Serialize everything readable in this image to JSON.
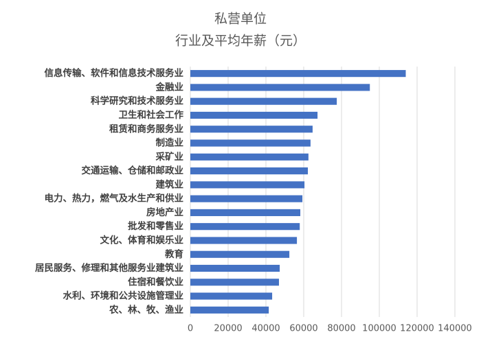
{
  "chart_data": {
    "type": "bar",
    "orientation": "horizontal",
    "title": "私营单位",
    "subtitle": "行业及平均年薪（元）",
    "categories": [
      "信息传输、软件和信息技术服务业",
      "金融业",
      "科学研究和技术服务业",
      "卫生和社会工作",
      "租赁和商务服务业",
      "制造业",
      "采矿业",
      "交通运输、仓储和邮政业",
      "建筑业",
      "电力、热力，燃气及水生产和供业",
      "房地产业",
      "批发和零售业",
      "文化、体育和娱乐业",
      "教育",
      "居民服务、修理和其他服务业建筑业",
      "住宿和餐饮业",
      "水利、环境和公共设施管理业",
      "农、林、牧、渔业"
    ],
    "values": [
      114000,
      95000,
      77500,
      67300,
      64700,
      63600,
      62500,
      62200,
      60400,
      59300,
      58200,
      57900,
      56400,
      52400,
      47300,
      46900,
      43300,
      41500
    ],
    "color": "#4472c4",
    "xlim": [
      0,
      140000
    ],
    "xticks": [
      0,
      20000,
      40000,
      60000,
      80000,
      100000,
      120000,
      140000
    ],
    "grid": true
  }
}
